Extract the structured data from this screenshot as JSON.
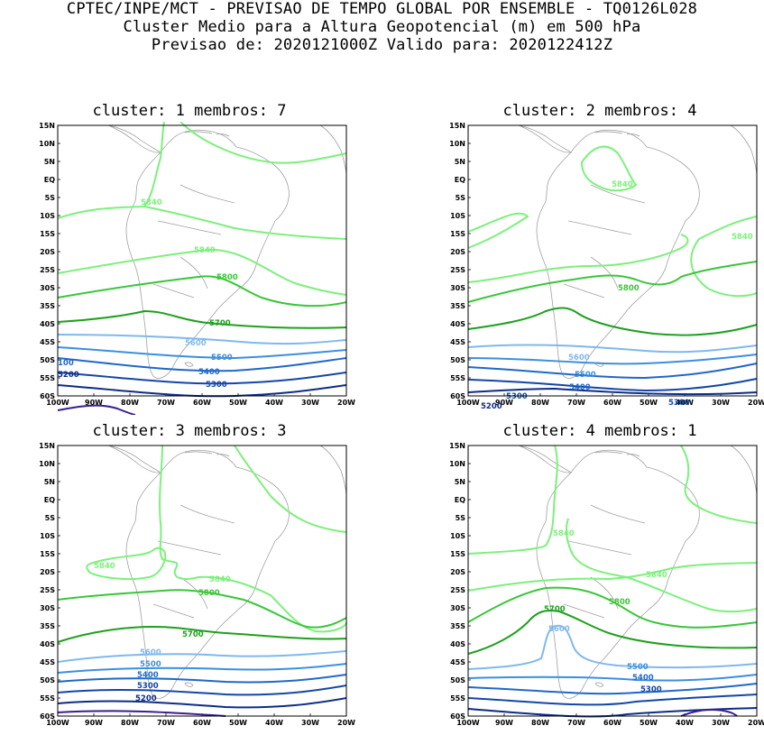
{
  "header": {
    "line1": "CPTEC/INPE/MCT - PREVISAO DE TEMPO GLOBAL POR ENSEMBLE - TQ0126L028",
    "line2": "Cluster Medio para a Altura Geopotencial (m) em 500 hPa",
    "line3": "Previsao de: 2020121000Z   Valido para: 2020122412Z"
  },
  "axes": {
    "lat_labels": [
      "15N",
      "10N",
      "5N",
      "EQ",
      "5S",
      "10S",
      "15S",
      "20S",
      "25S",
      "30S",
      "35S",
      "40S",
      "45S",
      "50S",
      "55S",
      "60S"
    ],
    "lon_labels": [
      "100W",
      "90W",
      "80W",
      "70W",
      "60W",
      "50W",
      "40W",
      "30W",
      "20W"
    ]
  },
  "colors": {
    "c5840": "#7cf07c",
    "c5800": "#39c639",
    "c5700": "#1ea01e",
    "c5600": "#7fb8ee",
    "c5500": "#3c8ee0",
    "c5400": "#1f68c8",
    "c5300": "#1446a6",
    "c5200": "#0d2d86",
    "c5100": "#3a1f8f",
    "coast": "#a0a0a0"
  },
  "panels": [
    {
      "title": "cluster: 1   membros: 7",
      "labels": {
        "l5840a": "5840",
        "l5840b": "5840",
        "l5800": "5800",
        "l5700": "5700",
        "l5600": "5600",
        "l5500": "5500",
        "l5400": "5400",
        "l5300": "5300",
        "l5200": "5200",
        "l5100": "100"
      }
    },
    {
      "title": "cluster: 2   membros: 4",
      "labels": {
        "l5840a": "5840",
        "l5840b": "5840",
        "l5800": "5800",
        "l5600": "5600",
        "l5500": "5500",
        "l5400": "5400",
        "l5300a": "5300",
        "l5300b": "5300",
        "l5200": "5200"
      }
    },
    {
      "title": "cluster: 3   membros: 3",
      "labels": {
        "l5840a": "5840",
        "l5840b": "5840",
        "l5800": "5800",
        "l5700": "5700",
        "l5600": "5600",
        "l5500": "5500",
        "l5400": "5400",
        "l5300": "5300",
        "l5200": "5200"
      }
    },
    {
      "title": "cluster: 4   membros: 1",
      "labels": {
        "l5840a": "5840",
        "l5840b": "5840",
        "l5800": "5800",
        "l5700": "5700",
        "l5600": "5600",
        "l5500": "5500",
        "l5400": "5400",
        "l5300": "5300"
      }
    }
  ]
}
